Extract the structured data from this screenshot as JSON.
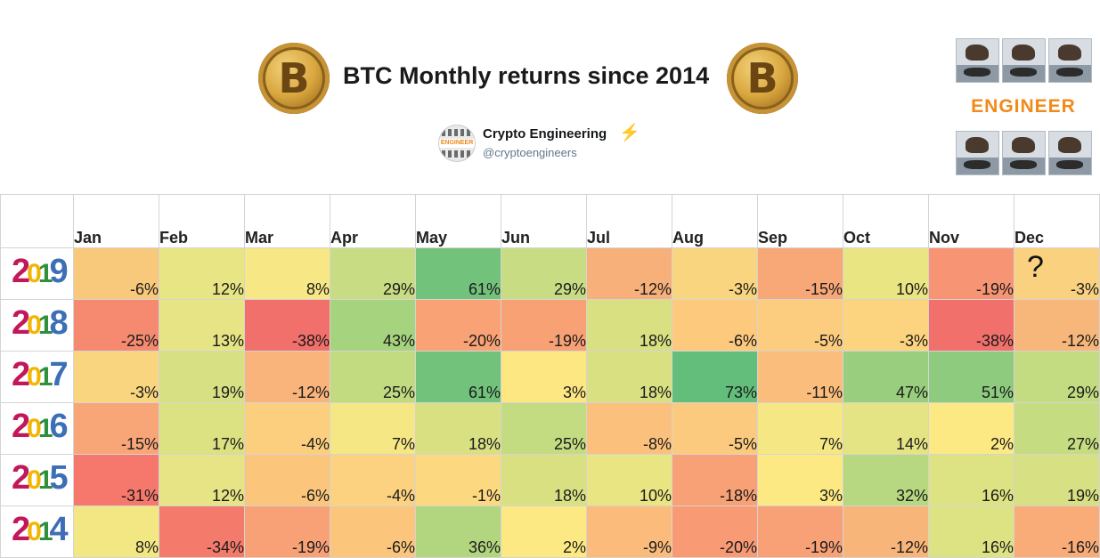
{
  "header": {
    "title": "BTC Monthly returns since 2014",
    "coin_symbol": "B",
    "account_name": "Crypto Engineering",
    "account_handle": "@cryptoengineers",
    "logo_text": "ENGINEER",
    "bolt_icon": "⚡"
  },
  "chart_data": {
    "type": "table",
    "title": "BTC Monthly returns since 2014",
    "columns": [
      "Jan",
      "Feb",
      "Mar",
      "Apr",
      "May",
      "Jun",
      "Jul",
      "Aug",
      "Sep",
      "Oct",
      "Nov",
      "Dec"
    ],
    "rows": [
      {
        "year": "2019",
        "values": [
          "-6%",
          "12%",
          "8%",
          "29%",
          "61%",
          "29%",
          "-12%",
          "-3%",
          "-15%",
          "10%",
          "-19%",
          "-3%"
        ],
        "annotation": "?"
      },
      {
        "year": "2018",
        "values": [
          "-25%",
          "13%",
          "-38%",
          "43%",
          "-20%",
          "-19%",
          "18%",
          "-6%",
          "-5%",
          "-3%",
          "-38%",
          "-12%"
        ]
      },
      {
        "year": "2017",
        "values": [
          "-3%",
          "19%",
          "-12%",
          "25%",
          "61%",
          "3%",
          "18%",
          "73%",
          "-11%",
          "47%",
          "51%",
          "29%"
        ]
      },
      {
        "year": "2016",
        "values": [
          "-15%",
          "17%",
          "-4%",
          "7%",
          "18%",
          "25%",
          "-8%",
          "-5%",
          "7%",
          "14%",
          "2%",
          "27%"
        ]
      },
      {
        "year": "2015",
        "values": [
          "-31%",
          "12%",
          "-6%",
          "-4%",
          "-1%",
          "18%",
          "10%",
          "-18%",
          "3%",
          "32%",
          "16%",
          "19%"
        ]
      },
      {
        "year": "2014",
        "values": [
          "8%",
          "-34%",
          "-19%",
          "-6%",
          "36%",
          "2%",
          "-9%",
          "-20%",
          "-19%",
          "-12%",
          "16%",
          "-16%"
        ]
      }
    ],
    "cell_colors": [
      [
        "#f8c87b",
        "#e8e584",
        "#f7e785",
        "#c8dd83",
        "#72c27c",
        "#c8dd83",
        "#f8b07a",
        "#fad57f",
        "#f8a777",
        "#eae583",
        "#f79474",
        "#fad17f"
      ],
      [
        "#f58a70",
        "#e6e484",
        "#f2706b",
        "#a6d37e",
        "#f8a275",
        "#f8a175",
        "#d8e082",
        "#fcc97d",
        "#fccd7e",
        "#fcd37f",
        "#f2706b",
        "#f8b77a"
      ],
      [
        "#fad57f",
        "#d7e082",
        "#f8b47a",
        "#c2db81",
        "#72c27c",
        "#fde783",
        "#d8e082",
        "#63be7b",
        "#fbbd7b",
        "#99ce7e",
        "#8fcb7e",
        "#c4dc81"
      ],
      [
        "#f8a677",
        "#dce182",
        "#fbcf7e",
        "#f5e784",
        "#d8e082",
        "#c4dc81",
        "#fbc17c",
        "#fcca7e",
        "#f5e784",
        "#e5e484",
        "#fce983",
        "#c6dc81"
      ],
      [
        "#f6786c",
        "#e6e484",
        "#fbc67c",
        "#fcd17f",
        "#fcd981",
        "#d8e082",
        "#e9e583",
        "#f8a176",
        "#fde983",
        "#b7d780",
        "#dde282",
        "#d7e082"
      ],
      [
        "#f3e784",
        "#f47a6c",
        "#f8a176",
        "#fbc67c",
        "#b2d57f",
        "#fde983",
        "#fbbc7b",
        "#f89b74",
        "#f8a176",
        "#f8b57a",
        "#dde282",
        "#f9ab78"
      ]
    ]
  }
}
